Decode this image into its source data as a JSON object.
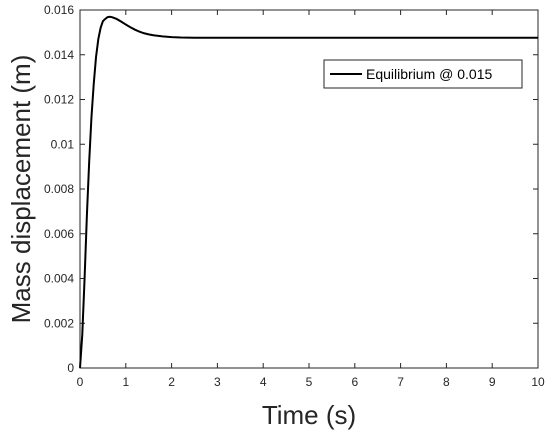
{
  "chart_data": {
    "type": "line",
    "title": "",
    "xlabel": "Time (s)",
    "ylabel": "Mass displacement (m)",
    "xlim": [
      0,
      10
    ],
    "ylim": [
      0,
      0.016
    ],
    "x_ticks": [
      0,
      1,
      2,
      3,
      4,
      5,
      6,
      7,
      8,
      9,
      10
    ],
    "x_tick_labels": [
      "0",
      "1",
      "2",
      "3",
      "4",
      "5",
      "6",
      "7",
      "8",
      "9",
      "10"
    ],
    "y_ticks": [
      0,
      0.002,
      0.004,
      0.006,
      0.008,
      0.01,
      0.012,
      0.014,
      0.016
    ],
    "y_tick_labels": [
      "0",
      "0.002",
      "0.004",
      "0.006",
      "0.008",
      "0.01",
      "0.012",
      "0.014",
      "0.016"
    ],
    "grid": false,
    "legend_position": "top-right",
    "series": [
      {
        "name": "Equilibrium @ 0.015",
        "color": "#000000",
        "x": [
          0,
          0.05,
          0.1,
          0.15,
          0.2,
          0.25,
          0.3,
          0.35,
          0.4,
          0.45,
          0.5,
          0.55,
          0.6,
          0.65,
          0.7,
          0.8,
          0.9,
          1.0,
          1.1,
          1.2,
          1.3,
          1.4,
          1.5,
          1.6,
          1.8,
          2.0,
          2.2,
          2.5,
          3.0,
          3.5,
          4.0,
          5.0,
          6.0,
          7.0,
          8.0,
          9.0,
          10.0
        ],
        "y": [
          0,
          0.0015,
          0.004,
          0.0068,
          0.0092,
          0.0112,
          0.0127,
          0.0139,
          0.0147,
          0.0152,
          0.0155,
          0.0156,
          0.01568,
          0.0157,
          0.01568,
          0.0156,
          0.01548,
          0.01535,
          0.01523,
          0.01512,
          0.01503,
          0.01496,
          0.01491,
          0.01487,
          0.01482,
          0.01479,
          0.01477,
          0.01476,
          0.01476,
          0.01476,
          0.01476,
          0.01476,
          0.01476,
          0.01476,
          0.01476,
          0.01476,
          0.01476
        ]
      }
    ]
  }
}
